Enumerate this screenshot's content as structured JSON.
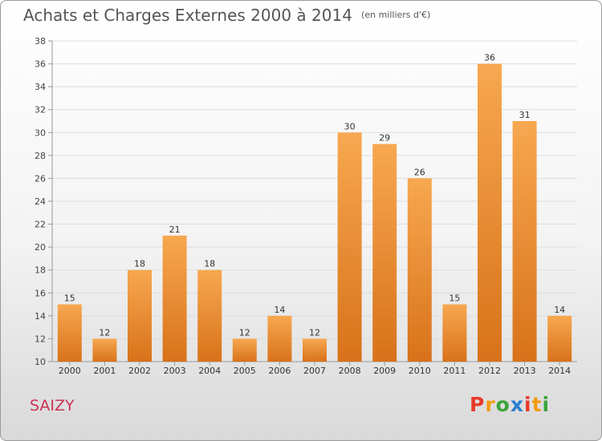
{
  "chart_data": {
    "type": "bar",
    "title": "Achats et Charges Externes 2000 à 2014",
    "subtitle": "(en milliers d'€)",
    "xlabel": "",
    "ylabel": "",
    "categories": [
      "2000",
      "2001",
      "2002",
      "2003",
      "2004",
      "2005",
      "2006",
      "2007",
      "2008",
      "2009",
      "2010",
      "2011",
      "2012",
      "2013",
      "2014"
    ],
    "values": [
      15,
      12,
      18,
      21,
      18,
      12,
      14,
      12,
      30,
      29,
      26,
      15,
      36,
      31,
      14
    ],
    "ylim": [
      10,
      38
    ],
    "yticks": [
      10,
      12,
      14,
      16,
      18,
      20,
      22,
      24,
      26,
      28,
      30,
      32,
      34,
      36,
      38
    ],
    "grid": true,
    "data_labels": true,
    "bar_color_top": "#f7a850",
    "bar_color_bottom": "#d8721a"
  },
  "commune": "SAIZY",
  "logo": {
    "letters": [
      "P",
      "r",
      "o",
      "x",
      "i",
      "t",
      "i"
    ],
    "colors": [
      "#e8392b",
      "#f39c12",
      "#3aa53a",
      "#2a7fd0",
      "#e8392b",
      "#f39c12",
      "#3aa53a"
    ]
  }
}
